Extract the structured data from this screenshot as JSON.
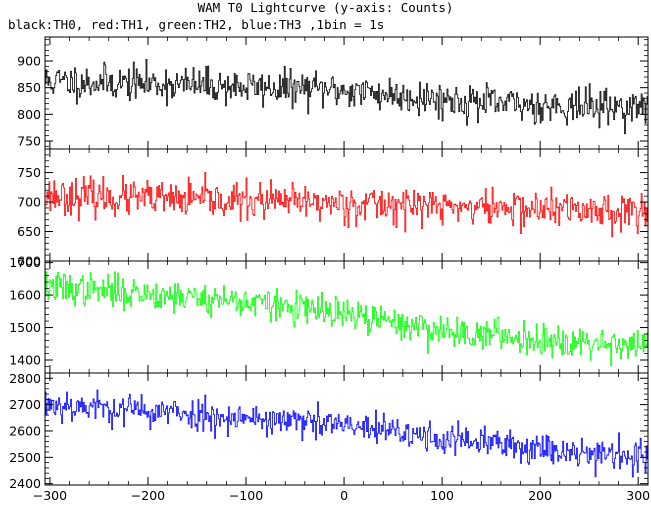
{
  "title": "WAM T0 Lightcurve (y-axis: Counts)",
  "subtitle": "black:TH0, red:TH1, green:TH2, blue:TH3 ,1bin = 1s",
  "chart_data": {
    "type": "line",
    "x_ticks": [
      -300,
      -200,
      -100,
      0,
      100,
      200,
      300
    ],
    "xlim": [
      -305,
      310
    ],
    "panels": [
      {
        "name": "TH0",
        "color": "#000000",
        "ylim": [
          735,
          945
        ],
        "yticks": [
          750,
          800,
          850,
          900
        ],
        "trend": [
          [
            -305,
            862
          ],
          [
            -200,
            858
          ],
          [
            0,
            845
          ],
          [
            150,
            820
          ],
          [
            310,
            812
          ]
        ],
        "noise": 30,
        "seed": 11
      },
      {
        "name": "TH1",
        "color": "#ff0000",
        "ylim": [
          600,
          790
        ],
        "yticks": [
          600,
          650,
          700,
          750
        ],
        "trend": [
          [
            -305,
            712
          ],
          [
            -200,
            705
          ],
          [
            0,
            698
          ],
          [
            200,
            688
          ],
          [
            310,
            685
          ]
        ],
        "noise": 28,
        "seed": 23
      },
      {
        "name": "TH2",
        "color": "#00ff00",
        "ylim": [
          1360,
          1705
        ],
        "yticks": [
          1400,
          1500,
          1600,
          1700
        ],
        "trend": [
          [
            -305,
            1625
          ],
          [
            -200,
            1605
          ],
          [
            -100,
            1580
          ],
          [
            0,
            1540
          ],
          [
            100,
            1490
          ],
          [
            200,
            1465
          ],
          [
            310,
            1445
          ]
        ],
        "noise": 45,
        "seed": 37
      },
      {
        "name": "TH3",
        "color": "#0000ff",
        "ylim": [
          2395,
          2820
        ],
        "yticks": [
          2400,
          2500,
          2600,
          2700,
          2800
        ],
        "trend": [
          [
            -305,
            2705
          ],
          [
            -200,
            2675
          ],
          [
            -100,
            2650
          ],
          [
            0,
            2620
          ],
          [
            100,
            2570
          ],
          [
            200,
            2535
          ],
          [
            310,
            2500
          ]
        ],
        "noise": 55,
        "seed": 53
      }
    ]
  }
}
